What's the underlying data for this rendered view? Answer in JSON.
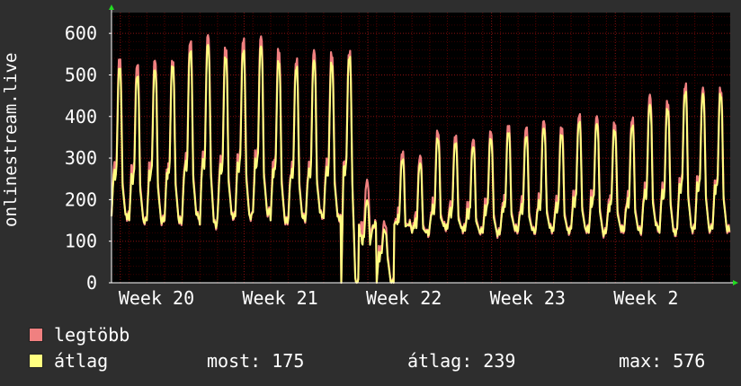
{
  "chart_data": {
    "type": "line",
    "ylabel": "onlinestream.live",
    "ylim": [
      0,
      650
    ],
    "yticks": [
      0,
      100,
      200,
      300,
      400,
      500,
      600
    ],
    "xticks": [
      "Week 20",
      "Week 21",
      "Week 22",
      "Week 23",
      "Week 2"
    ],
    "grid": true,
    "background": "#000000",
    "gridColor": "#5a0000",
    "axisColor": "#ffffff",
    "days": 35,
    "daily_peaks": {
      "max": [
        545,
        530,
        540,
        540,
        585,
        600,
        570,
        590,
        595,
        565,
        540,
        560,
        555,
        560,
        250,
        150,
        320,
        310,
        370,
        360,
        350,
        370,
        385,
        380,
        395,
        380,
        410,
        405,
        390,
        400,
        455,
        440,
        480,
        470,
        470
      ],
      "avg": [
        520,
        500,
        515,
        525,
        560,
        575,
        545,
        560,
        570,
        535,
        520,
        535,
        530,
        545,
        200,
        130,
        300,
        290,
        350,
        340,
        330,
        350,
        365,
        355,
        375,
        360,
        390,
        385,
        370,
        380,
        430,
        420,
        460,
        455,
        455
      ]
    },
    "daily_low": [
      160,
      150,
      150,
      150,
      160,
      140,
      160,
      160,
      170,
      150,
      155,
      165,
      155,
      0,
      140,
      0,
      140,
      120,
      135,
      130,
      125,
      120,
      130,
      125,
      130,
      125,
      130,
      120,
      130,
      125,
      135,
      120,
      130,
      130,
      130
    ],
    "series": [
      {
        "name": "legtöbb",
        "color": "#f08080"
      },
      {
        "name": "átlag",
        "color": "#ffff80"
      }
    ]
  },
  "legend": {
    "max_label": "legtöbb",
    "avg_label": "átlag",
    "max_color": "#f08080",
    "avg_color": "#ffff80"
  },
  "stats": {
    "now": "most: 175",
    "avg": "átlag: 239",
    "max": "max: 576"
  }
}
